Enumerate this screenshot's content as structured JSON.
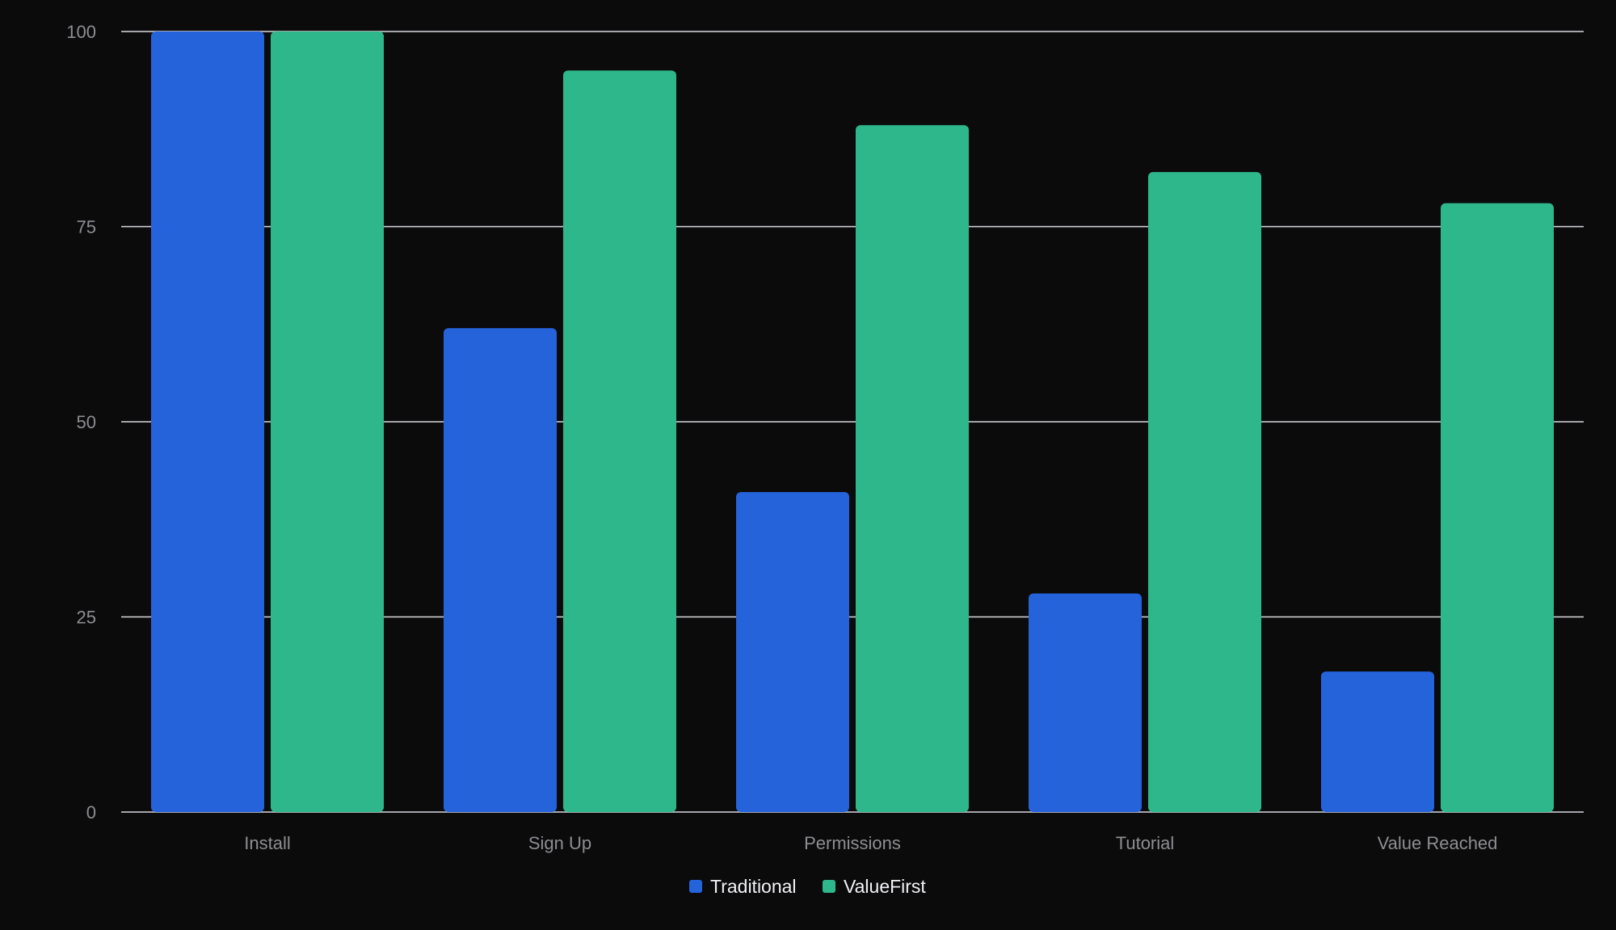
{
  "chart_data": {
    "type": "bar",
    "categories": [
      "Install",
      "Sign Up",
      "Permissions",
      "Tutorial",
      "Value Reached"
    ],
    "series": [
      {
        "name": "Traditional",
        "values": [
          100,
          62,
          41,
          28,
          18
        ]
      },
      {
        "name": "ValueFirst",
        "values": [
          100,
          95,
          88,
          82,
          78
        ]
      }
    ],
    "ylim": [
      0,
      100
    ],
    "yticks": [
      0,
      25,
      50,
      75,
      100
    ],
    "grid": true,
    "legend_position": "bottom-center",
    "colors": {
      "Traditional": "#2563db",
      "ValueFirst": "#2db78a",
      "background": "#0b0b0c",
      "grid": "#d9d9de",
      "tick_text": "#8e8e93",
      "legend_text": "#f2f2f7"
    }
  }
}
